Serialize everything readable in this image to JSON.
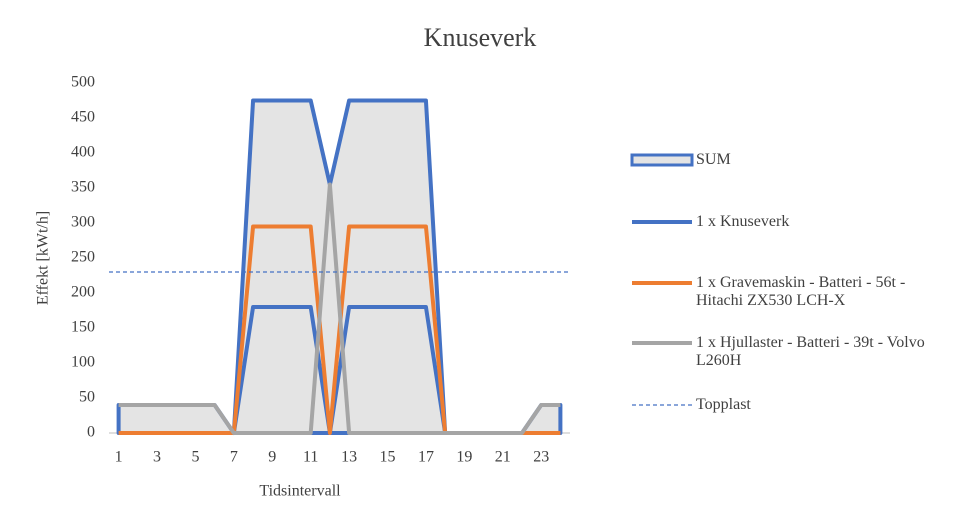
{
  "chart_data": {
    "type": "line",
    "title": "Knuseverk",
    "x_label": "Tidsintervall",
    "y_label": "Effekt [kWt/h]",
    "x": [
      1,
      2,
      3,
      4,
      5,
      6,
      7,
      8,
      9,
      10,
      11,
      12,
      13,
      14,
      15,
      16,
      17,
      18,
      19,
      20,
      21,
      22,
      23,
      24
    ],
    "xlim": [
      0.5,
      24.5
    ],
    "xticks": [
      1,
      3,
      5,
      7,
      9,
      11,
      13,
      15,
      17,
      19,
      21,
      23
    ],
    "ylim": [
      0,
      500
    ],
    "yticks": [
      0,
      50,
      100,
      150,
      200,
      250,
      300,
      350,
      400,
      450,
      500
    ],
    "series": [
      {
        "name": "SUM",
        "kind": "area",
        "color": "#4472c4",
        "fill": "#e4e4e4",
        "values": [
          40,
          40,
          40,
          40,
          40,
          40,
          0,
          475,
          475,
          475,
          475,
          355,
          475,
          475,
          475,
          475,
          475,
          0,
          0,
          0,
          0,
          0,
          40,
          40
        ]
      },
      {
        "name": "1 x Knuseverk",
        "kind": "line",
        "color": "#4472c4",
        "values": [
          0,
          0,
          0,
          0,
          0,
          0,
          0,
          180,
          180,
          180,
          180,
          0,
          180,
          180,
          180,
          180,
          180,
          0,
          0,
          0,
          0,
          0,
          0,
          0
        ]
      },
      {
        "name": "1 x Gravemaskin - Batteri - 56t - Hitachi ZX530 LCH-X",
        "kind": "line",
        "color": "#ed7d31",
        "values": [
          0,
          0,
          0,
          0,
          0,
          0,
          0,
          295,
          295,
          295,
          295,
          0,
          295,
          295,
          295,
          295,
          295,
          0,
          0,
          0,
          0,
          0,
          0,
          0
        ]
      },
      {
        "name": "1 x Hjullaster - Batteri - 39t - Volvo L260H",
        "kind": "line",
        "color": "#a5a5a5",
        "values": [
          40,
          40,
          40,
          40,
          40,
          40,
          0,
          0,
          0,
          0,
          0,
          355,
          0,
          0,
          0,
          0,
          0,
          0,
          0,
          0,
          0,
          0,
          40,
          40
        ]
      },
      {
        "name": "Topplast",
        "kind": "dashed",
        "color": "#4472c4",
        "values": [
          230,
          230,
          230,
          230,
          230,
          230,
          230,
          230,
          230,
          230,
          230,
          230,
          230,
          230,
          230,
          230,
          230,
          230,
          230,
          230,
          230,
          230,
          230,
          230
        ]
      }
    ]
  }
}
